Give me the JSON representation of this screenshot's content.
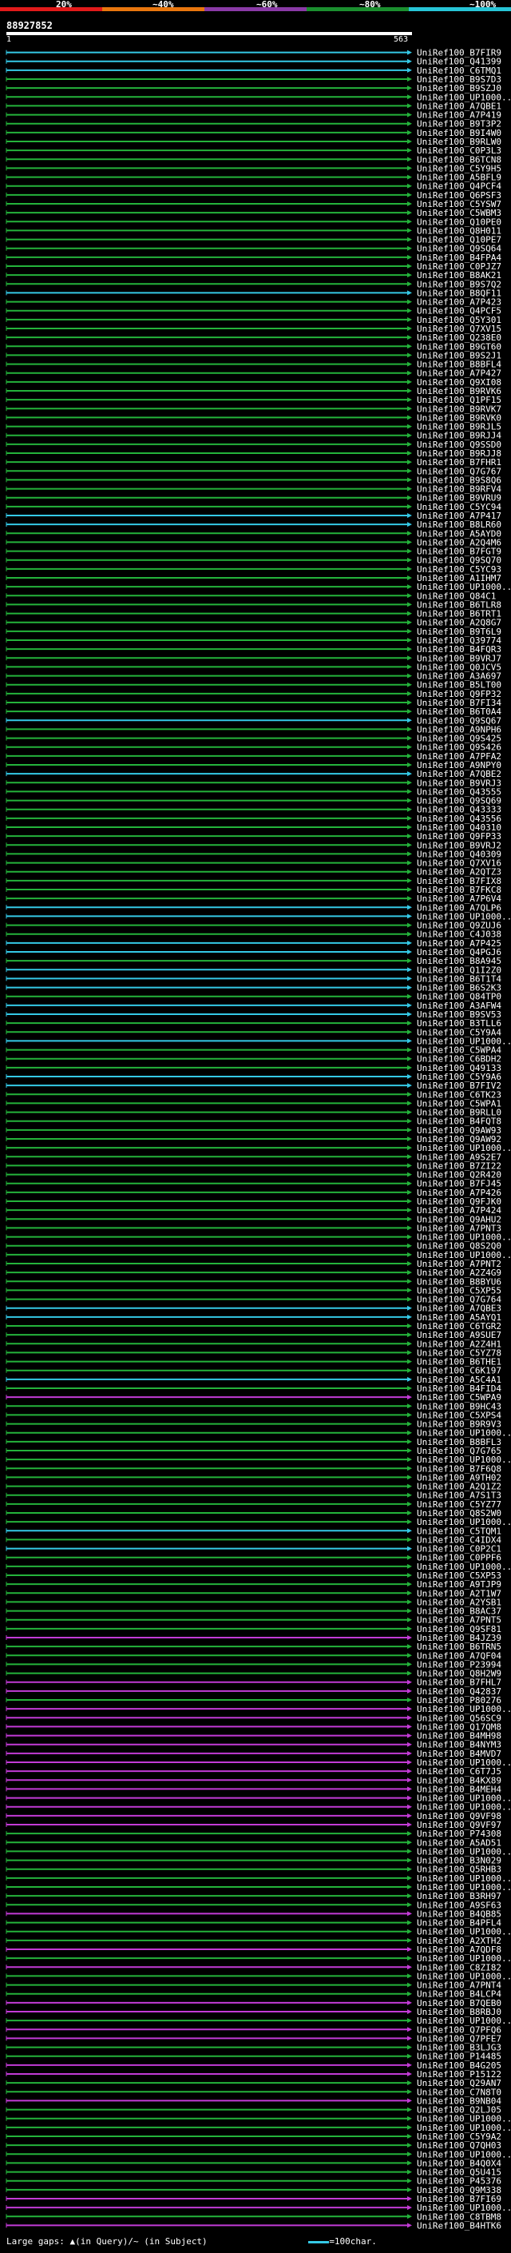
{
  "header": {
    "query_id": "88927852",
    "start": "1",
    "end": "563"
  },
  "scale": {
    "ticks": [
      "20%",
      "~40%",
      "~60%",
      "~80%",
      "~100%"
    ],
    "colors": [
      "#e11a1a",
      "#e8760e",
      "#8a3aa6",
      "#1b8f2f",
      "#27c4d6"
    ]
  },
  "identity_colors": {
    "cyan": "#35c9e6",
    "green": "#24b33b",
    "magenta": "#c23bd6",
    "dark": "#222222"
  },
  "footer": {
    "large_gaps_label": "Large gaps: ",
    "in_query": "(in Query)",
    "in_subject": "/~ (in Subject)",
    "legend_label": "=100char."
  },
  "query_length": 563,
  "hits": [
    {
      "label": "UniRef100_B7FIR9",
      "color": "cyan"
    },
    {
      "label": "UniRef100_Q41399",
      "color": "cyan"
    },
    {
      "label": "UniRef100_C6TMQ1",
      "color": "cyan"
    },
    {
      "label": "UniRef100_B9S7D3",
      "color": "green"
    },
    {
      "label": "UniRef100_B9SZJ0",
      "color": "green"
    },
    {
      "label": "UniRef100_UP1000...",
      "color": "green"
    },
    {
      "label": "UniRef100_A7QBE1",
      "color": "green"
    },
    {
      "label": "UniRef100_A7P419",
      "color": "green"
    },
    {
      "label": "UniRef100_B9T3P2",
      "color": "green"
    },
    {
      "label": "UniRef100_B9I4W0",
      "color": "green"
    },
    {
      "label": "UniRef100_B9RLW0",
      "color": "green"
    },
    {
      "label": "UniRef100_C0P3L3",
      "color": "green"
    },
    {
      "label": "UniRef100_B6TCN8",
      "color": "green"
    },
    {
      "label": "UniRef100_C5Y9H5",
      "color": "green"
    },
    {
      "label": "UniRef100_A5BFL9",
      "color": "green"
    },
    {
      "label": "UniRef100_Q4PCF4",
      "color": "green"
    },
    {
      "label": "UniRef100_Q6PSF3",
      "color": "green"
    },
    {
      "label": "UniRef100_C5YSW7",
      "color": "green"
    },
    {
      "label": "UniRef100_C5WBM3",
      "color": "green"
    },
    {
      "label": "UniRef100_Q10PE0",
      "color": "green"
    },
    {
      "label": "UniRef100_Q8H011",
      "color": "green"
    },
    {
      "label": "UniRef100_Q10PE7",
      "color": "green"
    },
    {
      "label": "UniRef100_Q9SQ64",
      "color": "green"
    },
    {
      "label": "UniRef100_B4FPA4",
      "color": "green"
    },
    {
      "label": "UniRef100_C0PJZ7",
      "color": "green"
    },
    {
      "label": "UniRef100_B8AK21",
      "color": "green"
    },
    {
      "label": "UniRef100_B9S7Q2",
      "color": "green"
    },
    {
      "label": "UniRef100_B8QF11",
      "color": "cyan"
    },
    {
      "label": "UniRef100_A7P423",
      "color": "green"
    },
    {
      "label": "UniRef100_Q4PCF5",
      "color": "green"
    },
    {
      "label": "UniRef100_Q5Y301",
      "color": "green"
    },
    {
      "label": "UniRef100_Q7XV15",
      "color": "green"
    },
    {
      "label": "UniRef100_Q238E0",
      "color": "green"
    },
    {
      "label": "UniRef100_B9GT60",
      "color": "green"
    },
    {
      "label": "UniRef100_B9S2J1",
      "color": "green"
    },
    {
      "label": "UniRef100_B8BFL4",
      "color": "green"
    },
    {
      "label": "UniRef100_A7P427",
      "color": "green"
    },
    {
      "label": "UniRef100_Q9XI08",
      "color": "green"
    },
    {
      "label": "UniRef100_B9RVK6",
      "color": "green"
    },
    {
      "label": "UniRef100_Q1PF15",
      "color": "green"
    },
    {
      "label": "UniRef100_B9RVK7",
      "color": "green"
    },
    {
      "label": "UniRef100_B9RVK0",
      "color": "green"
    },
    {
      "label": "UniRef100_B9RJL5",
      "color": "green"
    },
    {
      "label": "UniRef100_B9RJJ4",
      "color": "green"
    },
    {
      "label": "UniRef100_Q9SSD0",
      "color": "green"
    },
    {
      "label": "UniRef100_B9RJJ8",
      "color": "green"
    },
    {
      "label": "UniRef100_B7FHR1",
      "color": "green"
    },
    {
      "label": "UniRef100_Q7G767",
      "color": "green"
    },
    {
      "label": "UniRef100_B9S8Q6",
      "color": "green"
    },
    {
      "label": "UniRef100_B9RFV4",
      "color": "green"
    },
    {
      "label": "UniRef100_B9VRU9",
      "color": "green"
    },
    {
      "label": "UniRef100_C5YC94",
      "color": "green"
    },
    {
      "label": "UniRef100_A7P417",
      "color": "cyan"
    },
    {
      "label": "UniRef100_B8LR60",
      "color": "cyan"
    },
    {
      "label": "UniRef100_A5AYD0",
      "color": "green"
    },
    {
      "label": "UniRef100_A2Q4M6",
      "color": "green"
    },
    {
      "label": "UniRef100_B7FGT9",
      "color": "green"
    },
    {
      "label": "UniRef100_Q9SQ70",
      "color": "green"
    },
    {
      "label": "UniRef100_C5YC93",
      "color": "green"
    },
    {
      "label": "UniRef100_A1IHM7",
      "color": "green"
    },
    {
      "label": "UniRef100_UP1000...",
      "color": "green"
    },
    {
      "label": "UniRef100_Q84C1",
      "color": "green"
    },
    {
      "label": "UniRef100_B6TLR8",
      "color": "green"
    },
    {
      "label": "UniRef100_B6TRT1",
      "color": "green"
    },
    {
      "label": "UniRef100_A2Q8G7",
      "color": "green"
    },
    {
      "label": "UniRef100_B9T6L9",
      "color": "green"
    },
    {
      "label": "UniRef100_Q39774",
      "color": "green"
    },
    {
      "label": "UniRef100_B4FQR3",
      "color": "green"
    },
    {
      "label": "UniRef100_B9VRJ7",
      "color": "green"
    },
    {
      "label": "UniRef100_Q0JCV5",
      "color": "green"
    },
    {
      "label": "UniRef100_A3A697",
      "color": "green"
    },
    {
      "label": "UniRef100_B5LT00",
      "color": "green"
    },
    {
      "label": "UniRef100_Q9FP32",
      "color": "green"
    },
    {
      "label": "UniRef100_B7FI34",
      "color": "green"
    },
    {
      "label": "UniRef100_B6T0A4",
      "color": "green"
    },
    {
      "label": "UniRef100_Q9SQ67",
      "color": "cyan"
    },
    {
      "label": "UniRef100_A9NPH6",
      "color": "green"
    },
    {
      "label": "UniRef100_Q9S425",
      "color": "green"
    },
    {
      "label": "UniRef100_Q9S426",
      "color": "green"
    },
    {
      "label": "UniRef100_A7PFA2",
      "color": "green"
    },
    {
      "label": "UniRef100_A9NPY0",
      "color": "green"
    },
    {
      "label": "UniRef100_A7QBE2",
      "color": "cyan"
    },
    {
      "label": "UniRef100_B9VRJ3",
      "color": "green"
    },
    {
      "label": "UniRef100_Q43555",
      "color": "green"
    },
    {
      "label": "UniRef100_Q9SQ69",
      "color": "green"
    },
    {
      "label": "UniRef100_Q43333",
      "color": "green"
    },
    {
      "label": "UniRef100_Q43556",
      "color": "green"
    },
    {
      "label": "UniRef100_Q40310",
      "color": "green"
    },
    {
      "label": "UniRef100_Q9FP33",
      "color": "green"
    },
    {
      "label": "UniRef100_B9VRJ2",
      "color": "green"
    },
    {
      "label": "UniRef100_Q40309",
      "color": "green"
    },
    {
      "label": "UniRef100_Q7XV16",
      "color": "green"
    },
    {
      "label": "UniRef100_A2QTZ3",
      "color": "green"
    },
    {
      "label": "UniRef100_B7FIX8",
      "color": "green"
    },
    {
      "label": "UniRef100_B7FKC8",
      "color": "green"
    },
    {
      "label": "UniRef100_A7P6V4",
      "color": "green"
    },
    {
      "label": "UniRef100_A7QLP6",
      "color": "cyan"
    },
    {
      "label": "UniRef100_UP1000...",
      "color": "cyan"
    },
    {
      "label": "UniRef100_Q9ZUJ6",
      "color": "green"
    },
    {
      "label": "UniRef100_C4J038",
      "color": "green"
    },
    {
      "label": "UniRef100_A7P425",
      "color": "cyan"
    },
    {
      "label": "UniRef100_Q4PGJ6",
      "color": "cyan"
    },
    {
      "label": "UniRef100_B8A945",
      "color": "green"
    },
    {
      "label": "UniRef100_Q1I2Z0",
      "color": "cyan"
    },
    {
      "label": "UniRef100_B6T1T4",
      "color": "cyan"
    },
    {
      "label": "UniRef100_B6S2K3",
      "color": "cyan"
    },
    {
      "label": "UniRef100_Q84TP0",
      "color": "green"
    },
    {
      "label": "UniRef100_A3AFW4",
      "color": "cyan"
    },
    {
      "label": "UniRef100_B9SV53",
      "color": "cyan"
    },
    {
      "label": "UniRef100_B3TLL6",
      "color": "green"
    },
    {
      "label": "UniRef100_C5Y9A4",
      "color": "green"
    },
    {
      "label": "UniRef100_UP1000...",
      "color": "cyan"
    },
    {
      "label": "UniRef100_C5WPA4",
      "color": "green"
    },
    {
      "label": "UniRef100_C6BDH2",
      "color": "green"
    },
    {
      "label": "UniRef100_Q49133",
      "color": "green"
    },
    {
      "label": "UniRef100_C5Y9A6",
      "color": "cyan"
    },
    {
      "label": "UniRef100_B7FIV2",
      "color": "cyan"
    },
    {
      "label": "UniRef100_C6TK23",
      "color": "green"
    },
    {
      "label": "UniRef100_C5WPA1",
      "color": "green"
    },
    {
      "label": "UniRef100_B9RLL0",
      "color": "green"
    },
    {
      "label": "UniRef100_B4FQT8",
      "color": "green"
    },
    {
      "label": "UniRef100_Q9AW93",
      "color": "green"
    },
    {
      "label": "UniRef100_Q9AW92",
      "color": "green"
    },
    {
      "label": "UniRef100_UP1000...",
      "color": "green"
    },
    {
      "label": "UniRef100_A9S2E7",
      "color": "green"
    },
    {
      "label": "UniRef100_B7ZI22",
      "color": "green"
    },
    {
      "label": "UniRef100_Q2R420",
      "color": "green"
    },
    {
      "label": "UniRef100_B7FJ45",
      "color": "green"
    },
    {
      "label": "UniRef100_A7P426",
      "color": "green"
    },
    {
      "label": "UniRef100_Q9FJK0",
      "color": "green"
    },
    {
      "label": "UniRef100_A7P424",
      "color": "green"
    },
    {
      "label": "UniRef100_Q9AHU2",
      "color": "green"
    },
    {
      "label": "UniRef100_A7PNT3",
      "color": "green"
    },
    {
      "label": "UniRef100_UP1000...",
      "color": "green"
    },
    {
      "label": "UniRef100_Q8S2Q0",
      "color": "green"
    },
    {
      "label": "UniRef100_UP1000...",
      "color": "green"
    },
    {
      "label": "UniRef100_A7PNT2",
      "color": "green"
    },
    {
      "label": "UniRef100_A2Z4G9",
      "color": "green"
    },
    {
      "label": "UniRef100_B8BYU6",
      "color": "green"
    },
    {
      "label": "UniRef100_C5XP55",
      "color": "green"
    },
    {
      "label": "UniRef100_Q7G764",
      "color": "green"
    },
    {
      "label": "UniRef100_A7QBE3",
      "color": "cyan"
    },
    {
      "label": "UniRef100_A5AYQ1",
      "color": "cyan"
    },
    {
      "label": "UniRef100_C6TGR2",
      "color": "green"
    },
    {
      "label": "UniRef100_A9SUE7",
      "color": "green"
    },
    {
      "label": "UniRef100_A2Z4H1",
      "color": "green"
    },
    {
      "label": "UniRef100_C5YZ78",
      "color": "green"
    },
    {
      "label": "UniRef100_B6THE1",
      "color": "green"
    },
    {
      "label": "UniRef100_C6K197",
      "color": "green"
    },
    {
      "label": "UniRef100_A5C4A1",
      "color": "cyan"
    },
    {
      "label": "UniRef100_B4FID4",
      "color": "green"
    },
    {
      "label": "UniRef100_C5WPA9",
      "color": "magenta"
    },
    {
      "label": "UniRef100_B9HC43",
      "color": "green"
    },
    {
      "label": "UniRef100_C5XPS4",
      "color": "green"
    },
    {
      "label": "UniRef100_B9R9V3",
      "color": "green"
    },
    {
      "label": "UniRef100_UP1000...",
      "color": "green"
    },
    {
      "label": "UniRef100_B8BFL3",
      "color": "green"
    },
    {
      "label": "UniRef100_Q7G765",
      "color": "green"
    },
    {
      "label": "UniRef100_UP1000...",
      "color": "green"
    },
    {
      "label": "UniRef100_B7F6Q8",
      "color": "green"
    },
    {
      "label": "UniRef100_A9TH02",
      "color": "green"
    },
    {
      "label": "UniRef100_A2Q1Z2",
      "color": "green"
    },
    {
      "label": "UniRef100_A7S1T3",
      "color": "green"
    },
    {
      "label": "UniRef100_C5YZ77",
      "color": "green"
    },
    {
      "label": "UniRef100_Q8S2W0",
      "color": "green"
    },
    {
      "label": "UniRef100_UP1000...",
      "color": "green"
    },
    {
      "label": "UniRef100_C5TQM1",
      "color": "cyan"
    },
    {
      "label": "UniRef100_C4IDX4",
      "color": "green"
    },
    {
      "label": "UniRef100_C0P2C1",
      "color": "cyan"
    },
    {
      "label": "UniRef100_C0PPF6",
      "color": "green"
    },
    {
      "label": "UniRef100_UP1000...",
      "color": "green"
    },
    {
      "label": "UniRef100_C5XP53",
      "color": "green"
    },
    {
      "label": "UniRef100_A9TJP9",
      "color": "green"
    },
    {
      "label": "UniRef100_A2T1W7",
      "color": "green"
    },
    {
      "label": "UniRef100_A2YSB1",
      "color": "green"
    },
    {
      "label": "UniRef100_B8AC37",
      "color": "green"
    },
    {
      "label": "UniRef100_A7PNT5",
      "color": "green"
    },
    {
      "label": "UniRef100_Q9SF81",
      "color": "green"
    },
    {
      "label": "UniRef100_B4JZ39",
      "color": "magenta"
    },
    {
      "label": "UniRef100_B6TRN5",
      "color": "green"
    },
    {
      "label": "UniRef100_A7QF04",
      "color": "green"
    },
    {
      "label": "UniRef100_P23994",
      "color": "green"
    },
    {
      "label": "UniRef100_Q8H2W9",
      "color": "green"
    },
    {
      "label": "UniRef100_B7FHL7",
      "color": "magenta"
    },
    {
      "label": "UniRef100_Q42837",
      "color": "magenta"
    },
    {
      "label": "UniRef100_P80276",
      "color": "green"
    },
    {
      "label": "UniRef100_UP1000...",
      "color": "magenta"
    },
    {
      "label": "UniRef100_Q56SC9",
      "color": "magenta"
    },
    {
      "label": "UniRef100_Q17QM8",
      "color": "magenta"
    },
    {
      "label": "UniRef100_B4MH98",
      "color": "magenta"
    },
    {
      "label": "UniRef100_B4NYM3",
      "color": "magenta"
    },
    {
      "label": "UniRef100_B4MVD7",
      "color": "magenta"
    },
    {
      "label": "UniRef100_UP1000...",
      "color": "magenta"
    },
    {
      "label": "UniRef100_C6T7J5",
      "color": "magenta"
    },
    {
      "label": "UniRef100_B4KX89",
      "color": "magenta"
    },
    {
      "label": "UniRef100_B4MEH4",
      "color": "magenta"
    },
    {
      "label": "UniRef100_UP1000...",
      "color": "magenta"
    },
    {
      "label": "UniRef100_UP1000...",
      "color": "magenta"
    },
    {
      "label": "UniRef100_Q9VF98",
      "color": "magenta"
    },
    {
      "label": "UniRef100_Q9VF97",
      "color": "magenta"
    },
    {
      "label": "UniRef100_P74308",
      "color": "green"
    },
    {
      "label": "UniRef100_A5AD51",
      "color": "green"
    },
    {
      "label": "UniRef100_UP1000...",
      "color": "green"
    },
    {
      "label": "UniRef100_B3N029",
      "color": "green"
    },
    {
      "label": "UniRef100_Q5RHB3",
      "color": "green"
    },
    {
      "label": "UniRef100_UP1000...",
      "color": "green"
    },
    {
      "label": "UniRef100_UP1000...",
      "color": "green"
    },
    {
      "label": "UniRef100_B3RH97",
      "color": "green"
    },
    {
      "label": "UniRef100_A9SF63",
      "color": "green"
    },
    {
      "label": "UniRef100_B4QB85",
      "color": "magenta"
    },
    {
      "label": "UniRef100_B4PFL4",
      "color": "green"
    },
    {
      "label": "UniRef100_UP1000...",
      "color": "green"
    },
    {
      "label": "UniRef100_A2XTH2",
      "color": "green"
    },
    {
      "label": "UniRef100_A7QDF8",
      "color": "magenta"
    },
    {
      "label": "UniRef100_UP1000...",
      "color": "green"
    },
    {
      "label": "UniRef100_C8ZI82",
      "color": "magenta"
    },
    {
      "label": "UniRef100_UP1000...",
      "color": "green"
    },
    {
      "label": "UniRef100_A7PNT4",
      "color": "green"
    },
    {
      "label": "UniRef100_B4LCP4",
      "color": "green"
    },
    {
      "label": "UniRef100_B7QEB0",
      "color": "magenta"
    },
    {
      "label": "UniRef100_B8RBJ0",
      "color": "magenta"
    },
    {
      "label": "UniRef100_UP1000...",
      "color": "green"
    },
    {
      "label": "UniRef100_Q7PFQ6",
      "color": "magenta"
    },
    {
      "label": "UniRef100_Q7PFE7",
      "color": "magenta"
    },
    {
      "label": "UniRef100_B3LJG3",
      "color": "green"
    },
    {
      "label": "UniRef100_P14485",
      "color": "green"
    },
    {
      "label": "UniRef100_B4G205",
      "color": "magenta"
    },
    {
      "label": "UniRef100_P15122",
      "color": "magenta"
    },
    {
      "label": "UniRef100_Q29AN7",
      "color": "green"
    },
    {
      "label": "UniRef100_C7N8T0",
      "color": "green"
    },
    {
      "label": "UniRef100_B9NB04",
      "color": "magenta"
    },
    {
      "label": "UniRef100_Q2LJ05",
      "color": "green"
    },
    {
      "label": "UniRef100_UP1000...",
      "color": "green"
    },
    {
      "label": "UniRef100_UP1000...",
      "color": "green"
    },
    {
      "label": "UniRef100_C5Y9A2",
      "color": "green"
    },
    {
      "label": "UniRef100_Q7QH03",
      "color": "green"
    },
    {
      "label": "UniRef100_UP1000...",
      "color": "green"
    },
    {
      "label": "UniRef100_B4Q0X4",
      "color": "green"
    },
    {
      "label": "UniRef100_Q5U415",
      "color": "green"
    },
    {
      "label": "UniRef100_P45376",
      "color": "green"
    },
    {
      "label": "UniRef100_Q9M338",
      "color": "green"
    },
    {
      "label": "UniRef100_B7FI69",
      "color": "magenta"
    },
    {
      "label": "UniRef100_UP1000...",
      "color": "magenta"
    },
    {
      "label": "UniRef100_C8TBM8",
      "color": "green"
    },
    {
      "label": "UniRef100_B4HTK6",
      "color": "magenta"
    }
  ]
}
